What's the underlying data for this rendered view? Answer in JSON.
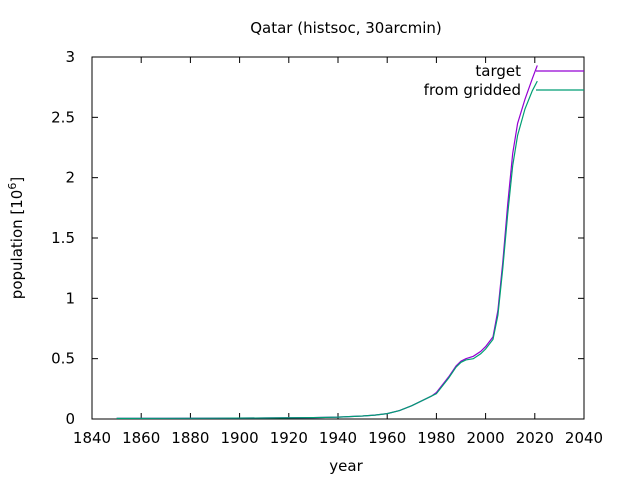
{
  "chart_data": {
    "type": "line",
    "title": "Qatar (histsoc, 30arcmin)",
    "xlabel": "year",
    "ylabel_base": "population [10",
    "ylabel_exp": "6",
    "ylabel_close": "]",
    "xlim": [
      1840,
      2040
    ],
    "ylim": [
      0,
      3
    ],
    "xticks": [
      1840,
      1860,
      1880,
      1900,
      1920,
      1940,
      1960,
      1980,
      2000,
      2020,
      2040
    ],
    "yticks": [
      0,
      0.5,
      1,
      1.5,
      2,
      2.5,
      3
    ],
    "ytick_labels": [
      "0",
      "0.5",
      "1",
      "1.5",
      "2",
      "2.5",
      "3"
    ],
    "grid": false,
    "legend_position": "top-right",
    "series": [
      {
        "name": "target",
        "color": "#9400d3",
        "x": [
          1850,
          1870,
          1890,
          1910,
          1930,
          1940,
          1950,
          1955,
          1960,
          1965,
          1970,
          1975,
          1978,
          1980,
          1985,
          1988,
          1990,
          1992,
          1995,
          1998,
          2000,
          2003,
          2005,
          2007,
          2009,
          2011,
          2013,
          2016,
          2019,
          2021
        ],
        "y": [
          0.005,
          0.006,
          0.007,
          0.008,
          0.012,
          0.016,
          0.025,
          0.032,
          0.045,
          0.07,
          0.11,
          0.16,
          0.19,
          0.22,
          0.35,
          0.44,
          0.48,
          0.5,
          0.52,
          0.56,
          0.6,
          0.68,
          0.9,
          1.3,
          1.78,
          2.2,
          2.45,
          2.65,
          2.82,
          2.93
        ]
      },
      {
        "name": "from gridded",
        "color": "#009e73",
        "x": [
          1850,
          1870,
          1890,
          1910,
          1930,
          1940,
          1950,
          1955,
          1960,
          1965,
          1970,
          1975,
          1978,
          1980,
          1985,
          1988,
          1990,
          1992,
          1995,
          1998,
          2000,
          2003,
          2005,
          2007,
          2009,
          2011,
          2013,
          2016,
          2019,
          2021
        ],
        "y": [
          0.005,
          0.006,
          0.007,
          0.008,
          0.012,
          0.016,
          0.025,
          0.032,
          0.045,
          0.07,
          0.11,
          0.16,
          0.19,
          0.21,
          0.34,
          0.43,
          0.47,
          0.49,
          0.5,
          0.54,
          0.58,
          0.66,
          0.86,
          1.25,
          1.7,
          2.1,
          2.35,
          2.57,
          2.72,
          2.8
        ]
      }
    ]
  }
}
